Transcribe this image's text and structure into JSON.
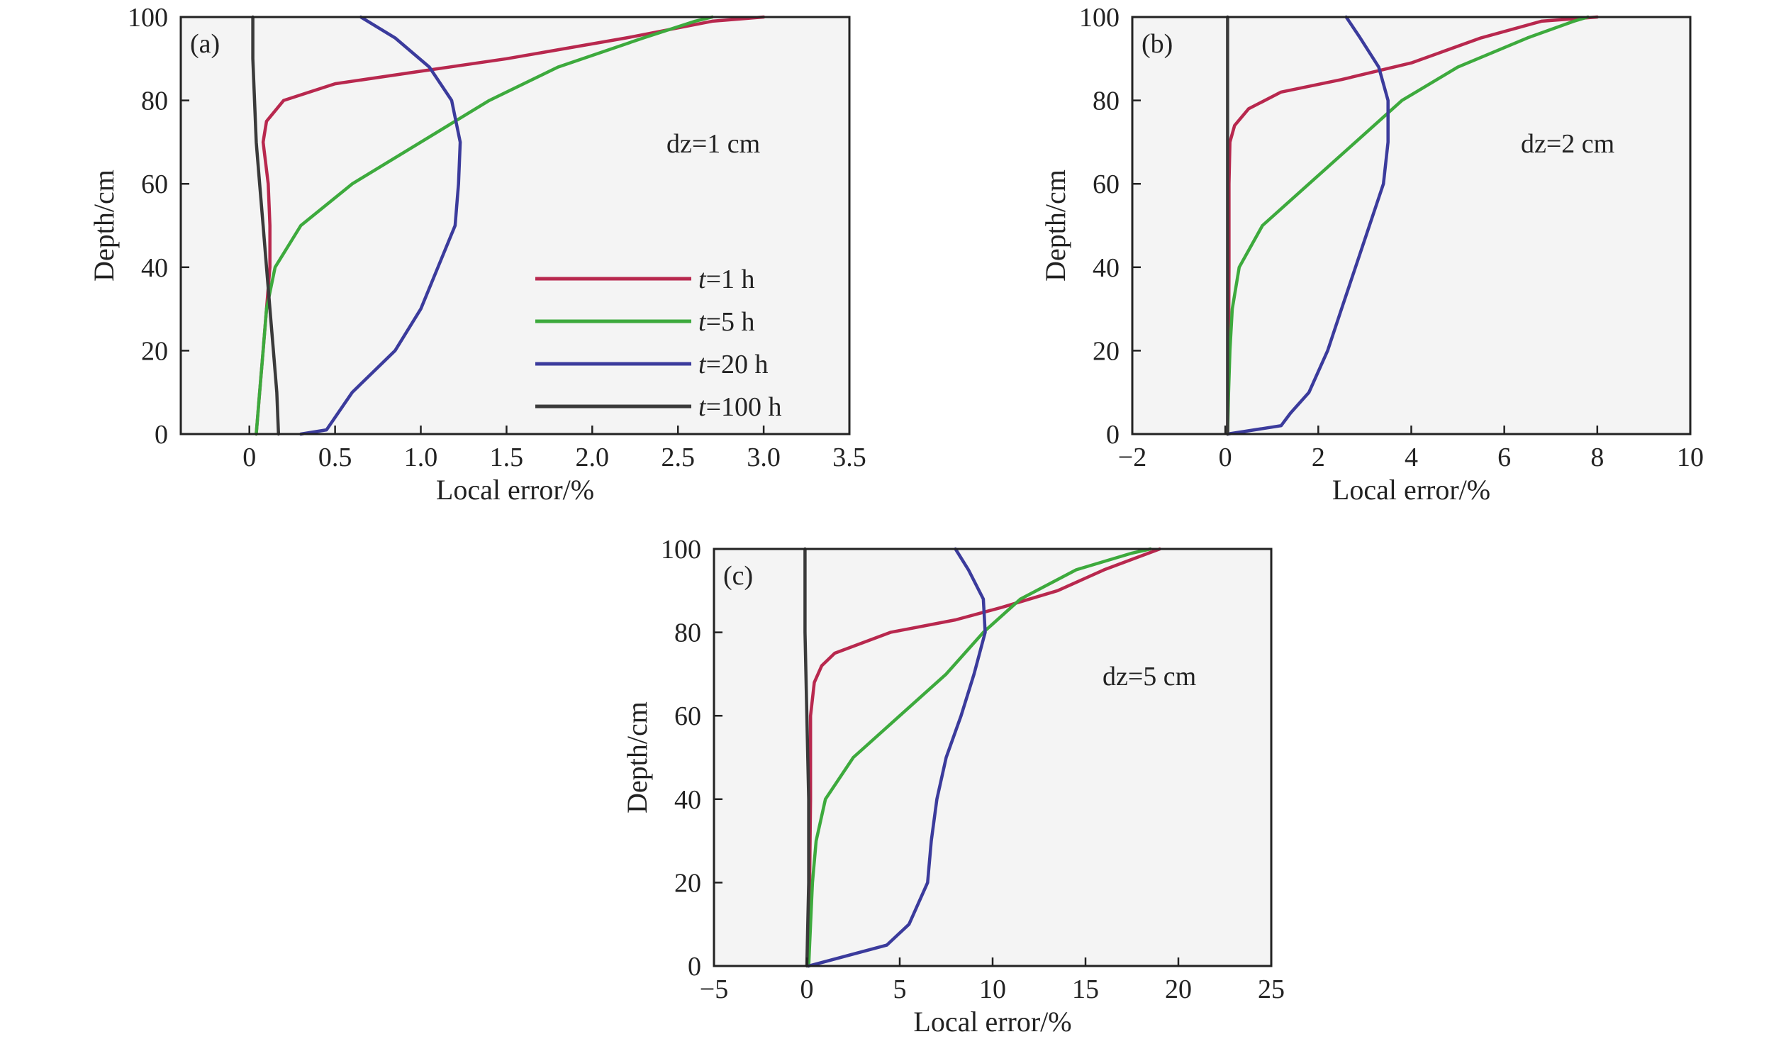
{
  "colors": {
    "background": "#ffffff",
    "plot_background": "#f4f4f4",
    "axis": "#222222"
  },
  "chart_data": [
    {
      "type": "line",
      "panel_label": "(a)",
      "annotation": "dz=1 cm",
      "xlabel": "Local error/%",
      "ylabel": "Depth/cm",
      "xlim": [
        -0.4,
        3.5
      ],
      "ylim": [
        0,
        100
      ],
      "xticks": [
        0,
        0.5,
        1.0,
        1.5,
        2.0,
        2.5,
        3.0,
        3.5
      ],
      "xtick_labels": [
        "0",
        "0.5",
        "1.0",
        "1.5",
        "2.0",
        "2.5",
        "3.0",
        "3.5"
      ],
      "yticks": [
        0,
        20,
        40,
        60,
        80,
        100
      ],
      "ytick_labels": [
        "0",
        "20",
        "40",
        "60",
        "80",
        "100"
      ],
      "grid": false,
      "legend": {
        "position": "center-right",
        "entries": [
          {
            "var": "t",
            "text": "=1 h",
            "color": "#b8284e"
          },
          {
            "var": "t",
            "text": "=5 h",
            "color": "#3daa3d"
          },
          {
            "var": "t",
            "text": "=20 h",
            "color": "#3b3b9c"
          },
          {
            "var": "t",
            "text": "=100 h",
            "color": "#3a3a3a"
          }
        ]
      },
      "series": [
        {
          "color": "#b8284e",
          "points": [
            [
              0.04,
              0
            ],
            [
              0.06,
              10
            ],
            [
              0.08,
              20
            ],
            [
              0.1,
              30
            ],
            [
              0.12,
              40
            ],
            [
              0.12,
              50
            ],
            [
              0.11,
              60
            ],
            [
              0.08,
              70
            ],
            [
              0.1,
              75
            ],
            [
              0.2,
              80
            ],
            [
              0.5,
              84
            ],
            [
              1.0,
              87
            ],
            [
              1.5,
              90
            ],
            [
              2.2,
              95
            ],
            [
              2.7,
              99
            ],
            [
              3.0,
              100
            ]
          ]
        },
        {
          "color": "#3daa3d",
          "points": [
            [
              0.04,
              0
            ],
            [
              0.06,
              10
            ],
            [
              0.08,
              20
            ],
            [
              0.1,
              30
            ],
            [
              0.15,
              40
            ],
            [
              0.3,
              50
            ],
            [
              0.6,
              60
            ],
            [
              1.0,
              70
            ],
            [
              1.4,
              80
            ],
            [
              1.8,
              88
            ],
            [
              2.3,
              95
            ],
            [
              2.6,
              99
            ],
            [
              2.7,
              100
            ]
          ]
        },
        {
          "color": "#3b3b9c",
          "points": [
            [
              0.3,
              0
            ],
            [
              0.45,
              1
            ],
            [
              0.6,
              10
            ],
            [
              0.85,
              20
            ],
            [
              1.0,
              30
            ],
            [
              1.1,
              40
            ],
            [
              1.2,
              50
            ],
            [
              1.22,
              60
            ],
            [
              1.23,
              70
            ],
            [
              1.18,
              80
            ],
            [
              1.05,
              88
            ],
            [
              0.85,
              95
            ],
            [
              0.65,
              100
            ]
          ]
        },
        {
          "color": "#3a3a3a",
          "points": [
            [
              0.17,
              0
            ],
            [
              0.16,
              10
            ],
            [
              0.14,
              20
            ],
            [
              0.12,
              30
            ],
            [
              0.1,
              40
            ],
            [
              0.08,
              50
            ],
            [
              0.06,
              60
            ],
            [
              0.04,
              70
            ],
            [
              0.03,
              80
            ],
            [
              0.02,
              90
            ],
            [
              0.02,
              100
            ]
          ]
        }
      ]
    },
    {
      "type": "line",
      "panel_label": "(b)",
      "annotation": "dz=2 cm",
      "xlabel": "Local error/%",
      "ylabel": "Depth/cm",
      "xlim": [
        -2,
        10
      ],
      "ylim": [
        0,
        100
      ],
      "xticks": [
        -2,
        0,
        2,
        4,
        6,
        8,
        10
      ],
      "xtick_labels": [
        "−2",
        "0",
        "2",
        "4",
        "6",
        "8",
        "10"
      ],
      "yticks": [
        0,
        20,
        40,
        60,
        80,
        100
      ],
      "ytick_labels": [
        "0",
        "20",
        "40",
        "60",
        "80",
        "100"
      ],
      "grid": false,
      "series": [
        {
          "color": "#b8284e",
          "points": [
            [
              0.05,
              0
            ],
            [
              0.07,
              20
            ],
            [
              0.08,
              40
            ],
            [
              0.08,
              60
            ],
            [
              0.1,
              70
            ],
            [
              0.2,
              74
            ],
            [
              0.5,
              78
            ],
            [
              1.2,
              82
            ],
            [
              2.5,
              85
            ],
            [
              4.0,
              89
            ],
            [
              5.5,
              95
            ],
            [
              6.8,
              99
            ],
            [
              8.0,
              100
            ]
          ]
        },
        {
          "color": "#3daa3d",
          "points": [
            [
              0.05,
              0
            ],
            [
              0.07,
              10
            ],
            [
              0.1,
              20
            ],
            [
              0.15,
              30
            ],
            [
              0.3,
              40
            ],
            [
              0.8,
              50
            ],
            [
              1.8,
              60
            ],
            [
              2.8,
              70
            ],
            [
              3.8,
              80
            ],
            [
              5.0,
              88
            ],
            [
              6.5,
              95
            ],
            [
              7.5,
              99
            ],
            [
              7.8,
              100
            ]
          ]
        },
        {
          "color": "#3b3b9c",
          "points": [
            [
              0.05,
              0
            ],
            [
              1.2,
              2
            ],
            [
              1.4,
              5
            ],
            [
              1.8,
              10
            ],
            [
              2.2,
              20
            ],
            [
              2.5,
              30
            ],
            [
              2.8,
              40
            ],
            [
              3.1,
              50
            ],
            [
              3.4,
              60
            ],
            [
              3.5,
              70
            ],
            [
              3.5,
              80
            ],
            [
              3.3,
              88
            ],
            [
              2.9,
              95
            ],
            [
              2.6,
              100
            ]
          ]
        },
        {
          "color": "#3a3a3a",
          "points": [
            [
              0.05,
              0
            ],
            [
              0.05,
              100
            ]
          ]
        }
      ]
    },
    {
      "type": "line",
      "panel_label": "(c)",
      "annotation": "dz=5 cm",
      "xlabel": "Local error/%",
      "ylabel": "Depth/cm",
      "xlim": [
        -5,
        25
      ],
      "ylim": [
        0,
        100
      ],
      "xticks": [
        -5,
        0,
        5,
        10,
        15,
        20,
        25
      ],
      "xtick_labels": [
        "−5",
        "0",
        "5",
        "10",
        "15",
        "20",
        "25"
      ],
      "yticks": [
        0,
        20,
        40,
        60,
        80,
        100
      ],
      "ytick_labels": [
        "0",
        "20",
        "40",
        "60",
        "80",
        "100"
      ],
      "grid": false,
      "series": [
        {
          "color": "#b8284e",
          "points": [
            [
              0.1,
              0
            ],
            [
              0.15,
              20
            ],
            [
              0.2,
              40
            ],
            [
              0.2,
              60
            ],
            [
              0.4,
              68
            ],
            [
              0.8,
              72
            ],
            [
              1.5,
              75
            ],
            [
              4.5,
              80
            ],
            [
              8.0,
              83
            ],
            [
              10.5,
              86
            ],
            [
              13.5,
              90
            ],
            [
              16,
              95
            ],
            [
              19,
              100
            ]
          ]
        },
        {
          "color": "#3daa3d",
          "points": [
            [
              0.1,
              0
            ],
            [
              0.2,
              10
            ],
            [
              0.3,
              20
            ],
            [
              0.5,
              30
            ],
            [
              1.0,
              40
            ],
            [
              2.5,
              50
            ],
            [
              5.0,
              60
            ],
            [
              7.5,
              70
            ],
            [
              9.5,
              80
            ],
            [
              11.5,
              88
            ],
            [
              14.5,
              95
            ],
            [
              17.5,
              99
            ],
            [
              18.5,
              100
            ]
          ]
        },
        {
          "color": "#3b3b9c",
          "points": [
            [
              0.1,
              0
            ],
            [
              4.3,
              5
            ],
            [
              5.5,
              10
            ],
            [
              6.5,
              20
            ],
            [
              6.7,
              30
            ],
            [
              7.0,
              40
            ],
            [
              7.5,
              50
            ],
            [
              8.3,
              60
            ],
            [
              9.0,
              70
            ],
            [
              9.6,
              80
            ],
            [
              9.5,
              88
            ],
            [
              8.7,
              95
            ],
            [
              8.0,
              100
            ]
          ]
        },
        {
          "color": "#3a3a3a",
          "points": [
            [
              0.0,
              0
            ],
            [
              0.1,
              20
            ],
            [
              0.1,
              40
            ],
            [
              0.0,
              60
            ],
            [
              -0.1,
              80
            ],
            [
              -0.1,
              100
            ]
          ]
        }
      ]
    }
  ]
}
